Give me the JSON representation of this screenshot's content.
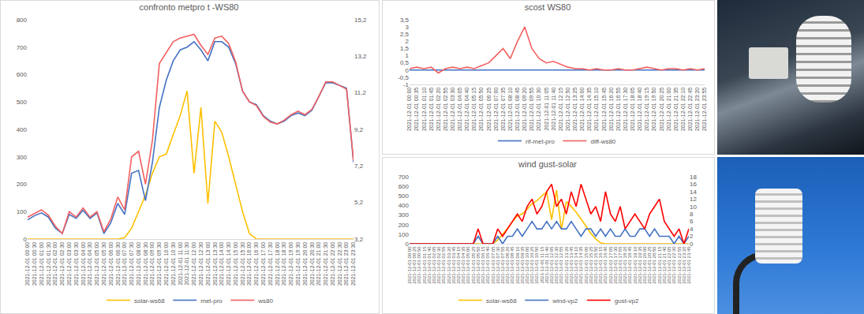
{
  "chart_data": [
    {
      "type": "line",
      "title": "confronto metpro t -WS80",
      "categories": [
        "2021-12-01 00:00",
        "2021-12-01 00:30",
        "2021-12-01 01:00",
        "2021-12-01 01:30",
        "2021-12-01 02:00",
        "2021-12-01 02:30",
        "2021-12-01 03:00",
        "2021-12-01 03:30",
        "2021-12-01 04:00",
        "2021-12-01 04:30",
        "2021-12-01 05:00",
        "2021-12-01 05:30",
        "2021-12-01 06:00",
        "2021-12-01 06:30",
        "2021-12-01 07:00",
        "2021-12-01 07:30",
        "2021-12-01 08:00",
        "2021-12-01 08:30",
        "2021-12-01 09:00",
        "2021-12-01 09:30",
        "2021-12-01 10:00",
        "2021-12-01 10:30",
        "2021-12-01 11:00",
        "2021-12-01 11:30",
        "2021-12-01 12:00",
        "2021-12-01 12:30",
        "2021-12-01 13:00",
        "2021-12-01 13:30",
        "2021-12-01 14:00",
        "2021-12-01 14:30",
        "2021-12-01 15:00",
        "2021-12-01 15:30",
        "2021-12-01 16:00",
        "2021-12-01 16:30",
        "2021-12-01 17:00",
        "2021-12-01 17:30",
        "2021-12-01 18:00",
        "2021-12-01 18:30",
        "2021-12-01 19:00",
        "2021-12-01 19:30",
        "2021-12-01 20:00",
        "2021-12-01 20:30",
        "2021-12-01 21:00",
        "2021-12-01 21:30",
        "2021-12-01 22:00",
        "2021-12-01 22:30",
        "2021-12-01 23:00",
        "2021-12-01 23:30"
      ],
      "series": [
        {
          "name": "solar-ws68",
          "color": "#ffc000",
          "values": [
            0,
            0,
            0,
            0,
            0,
            0,
            0,
            0,
            0,
            0,
            0,
            0,
            0,
            0,
            5,
            40,
            100,
            160,
            240,
            300,
            310,
            380,
            450,
            540,
            240,
            480,
            130,
            430,
            390,
            300,
            200,
            100,
            20,
            0,
            0,
            0,
            0,
            0,
            0,
            0,
            0,
            0,
            0,
            0,
            0,
            0,
            0,
            0
          ]
        },
        {
          "name": "met-pro",
          "color": "#4472c4",
          "axis": "y2",
          "values": [
            4.25,
            4.48,
            4.63,
            4.4,
            3.8,
            3.5,
            4.55,
            4.33,
            4.78,
            4.33,
            4.63,
            3.5,
            4.1,
            5.15,
            4.55,
            6.8,
            6.95,
            5.3,
            7.4,
            10.4,
            11.9,
            12.95,
            13.55,
            13.7,
            14.0,
            13.55,
            12.95,
            14.0,
            14.0,
            13.7,
            12.8,
            11.3,
            10.7,
            10.55,
            9.95,
            9.65,
            9.5,
            9.65,
            9.95,
            10.1,
            9.95,
            10.25,
            11.0,
            11.75,
            11.75,
            11.6,
            11.45,
            7.4
          ]
        },
        {
          "name": "ws80",
          "color": "#f46060",
          "axis": "y2",
          "values": [
            4.4,
            4.6,
            4.8,
            4.5,
            3.9,
            3.5,
            4.7,
            4.4,
            4.9,
            4.4,
            4.7,
            3.6,
            4.3,
            5.5,
            4.8,
            7.7,
            8.0,
            6.2,
            8.6,
            12.8,
            13.4,
            14.0,
            14.2,
            14.3,
            14.4,
            13.8,
            13.3,
            14.2,
            14.3,
            13.9,
            12.9,
            11.3,
            10.7,
            10.5,
            9.9,
            9.6,
            9.5,
            9.7,
            10.0,
            10.2,
            10.0,
            10.3,
            11.0,
            11.8,
            11.8,
            11.6,
            11.4,
            7.5
          ]
        }
      ],
      "ylim": [
        0,
        800
      ],
      "yticks": [
        0,
        100,
        200,
        300,
        400,
        500,
        600,
        700,
        800
      ],
      "y2lim": [
        3.2,
        15.2
      ],
      "y2ticks": [
        {
          "value": 3.2,
          "label": "3,2"
        },
        {
          "value": 5.2,
          "label": "5,2"
        },
        {
          "value": 7.2,
          "label": "7,2"
        },
        {
          "value": 9.2,
          "label": "9,2"
        },
        {
          "value": 11.2,
          "label": "11,2"
        },
        {
          "value": 13.2,
          "label": "13,2"
        },
        {
          "value": 15.2,
          "label": "15,2"
        }
      ],
      "grid": false,
      "legend": "bottom"
    },
    {
      "type": "line",
      "title": "scost WS80",
      "categories": [
        "2021-12-01 00:00",
        "2021-12-01 00:35",
        "2021-12-01 01:10",
        "2021-12-01 01:45",
        "2021-12-01 02:20",
        "2021-12-01 02:55",
        "2021-12-01 03:30",
        "2021-12-01 04:05",
        "2021-12-01 04:40",
        "2021-12-01 05:15",
        "2021-12-01 05:50",
        "2021-12-01 06:25",
        "2021-12-01 07:00",
        "2021-12-01 07:35",
        "2021-12-01 08:10",
        "2021-12-01 08:45",
        "2021-12-01 09:20",
        "2021-12-01 09:55",
        "2021-12-01 10:30",
        "2021-12-01 11:05",
        "2021-12-01 11:40",
        "2021-12-01 12:15",
        "2021-12-01 12:50",
        "2021-12-01 13:25",
        "2021-12-01 14:00",
        "2021-12-01 14:35",
        "2021-12-01 15:10",
        "2021-12-01 15:45",
        "2021-12-01 16:20",
        "2021-12-01 16:55",
        "2021-12-01 17:30",
        "2021-12-01 18:05",
        "2021-12-01 18:40",
        "2021-12-01 19:15",
        "2021-12-01 19:50",
        "2021-12-01 20:25",
        "2021-12-01 21:00",
        "2021-12-01 21:35",
        "2021-12-01 22:10",
        "2021-12-01 22:45",
        "2021-12-01 23:20",
        "2021-12-01 23:55"
      ],
      "series": [
        {
          "name": "rif-met-pro",
          "color": "#4472c4",
          "values": [
            0,
            0,
            0,
            0,
            0,
            0,
            0,
            0,
            0,
            0,
            0,
            0,
            0,
            0,
            0,
            0,
            0,
            0,
            0,
            0,
            0,
            0,
            0,
            0,
            0,
            0,
            0,
            0,
            0,
            0,
            0,
            0,
            0,
            0,
            0,
            0,
            0,
            0,
            0,
            0,
            0,
            0
          ]
        },
        {
          "name": "diff-ws80",
          "color": "#f46060",
          "values": [
            0.1,
            0.2,
            0.1,
            0.2,
            -0.2,
            0.1,
            0.2,
            0.1,
            0.2,
            0.1,
            0.3,
            0.5,
            1.0,
            1.5,
            0.8,
            2.0,
            3.0,
            1.5,
            0.8,
            0.5,
            0.6,
            0.4,
            0.2,
            0.1,
            0.1,
            0.0,
            0.1,
            0.0,
            0.0,
            0.1,
            0.0,
            0.0,
            0.1,
            0.2,
            0.1,
            0.0,
            0.1,
            0.1,
            0.0,
            0.1,
            0.0,
            0.1
          ]
        }
      ],
      "ylim": [
        -1,
        3.5
      ],
      "yticks": [
        {
          "value": -1,
          "label": "-1"
        },
        {
          "value": -0.5,
          "label": "-0,5"
        },
        0,
        {
          "value": 0.5,
          "label": "0,5"
        },
        1,
        {
          "value": 1.5,
          "label": "1,5"
        },
        2,
        {
          "value": 2.5,
          "label": "2,5"
        },
        3,
        {
          "value": 3.5,
          "label": "3,5"
        }
      ],
      "grid": false,
      "legend": "bottom"
    },
    {
      "type": "line",
      "title": "wind gust-solar",
      "categories": [
        "2021-12-01 00:00",
        "2021-12-01 00:25",
        "2021-12-01 00:50",
        "2021-12-01 01:15",
        "2021-12-01 01:40",
        "2021-12-01 02:05",
        "2021-12-01 02:30",
        "2021-12-01 02:55",
        "2021-12-01 03:20",
        "2021-12-01 03:45",
        "2021-12-01 04:10",
        "2021-12-01 04:35",
        "2021-12-01 05:00",
        "2021-12-01 05:25",
        "2021-12-01 05:50",
        "2021-12-01 06:15",
        "2021-12-01 06:40",
        "2021-12-01 07:05",
        "2021-12-01 07:30",
        "2021-12-01 07:55",
        "2021-12-01 08:20",
        "2021-12-01 08:45",
        "2021-12-01 09:10",
        "2021-12-01 09:35",
        "2021-12-01 10:00",
        "2021-12-01 10:25",
        "2021-12-01 10:50",
        "2021-12-01 11:15",
        "2021-12-01 11:40",
        "2021-12-01 12:05",
        "2021-12-01 12:30",
        "2021-12-01 12:55",
        "2021-12-01 13:20",
        "2021-12-01 13:45",
        "2021-12-01 14:10",
        "2021-12-01 14:35",
        "2021-12-01 15:00",
        "2021-12-01 15:25",
        "2021-12-01 15:50",
        "2021-12-01 16:15",
        "2021-12-01 16:40",
        "2021-12-01 17:05",
        "2021-12-01 17:30",
        "2021-12-01 17:55",
        "2021-12-01 18:20",
        "2021-12-01 18:45",
        "2021-12-01 19:10",
        "2021-12-01 19:35",
        "2021-12-01 20:00",
        "2021-12-01 20:25",
        "2021-12-01 20:50",
        "2021-12-01 21:15",
        "2021-12-01 21:40",
        "2021-12-01 22:05",
        "2021-12-01 22:30",
        "2021-12-01 22:55",
        "2021-12-01 23:20",
        "2021-12-01 23:45"
      ],
      "series": [
        {
          "name": "solar-ws68",
          "color": "#ffc000",
          "values": [
            0,
            0,
            0,
            0,
            0,
            0,
            0,
            0,
            0,
            0,
            0,
            0,
            0,
            0,
            0,
            0,
            0,
            0,
            40,
            100,
            160,
            230,
            290,
            310,
            360,
            420,
            450,
            500,
            540,
            250,
            560,
            150,
            440,
            390,
            330,
            260,
            180,
            110,
            50,
            10,
            0,
            0,
            0,
            0,
            0,
            0,
            0,
            0,
            0,
            0,
            0,
            0,
            0,
            0,
            0,
            0,
            0,
            0
          ]
        },
        {
          "name": "wind-vp2",
          "color": "#4472c4",
          "axis": "y2",
          "values": [
            0,
            0,
            0,
            0,
            0,
            0,
            0,
            0,
            0,
            0,
            0,
            0,
            0,
            0,
            2,
            0,
            0,
            0,
            2,
            0,
            2,
            2,
            4,
            2,
            4,
            6,
            4,
            4,
            6,
            4,
            6,
            4,
            4,
            6,
            4,
            2,
            4,
            4,
            2,
            4,
            2,
            4,
            2,
            2,
            4,
            2,
            2,
            4,
            4,
            2,
            4,
            2,
            2,
            2,
            0,
            2,
            0,
            2
          ]
        },
        {
          "name": "gust-vp2",
          "color": "#ff0000",
          "axis": "y2",
          "values": [
            0,
            0,
            0,
            0,
            0,
            0,
            0,
            0,
            0,
            0,
            0,
            0,
            0,
            0,
            4,
            0,
            0,
            0,
            4,
            2,
            4,
            6,
            8,
            6,
            10,
            12,
            8,
            10,
            14,
            16,
            10,
            12,
            8,
            14,
            10,
            16,
            12,
            8,
            10,
            6,
            14,
            8,
            6,
            10,
            4,
            6,
            8,
            6,
            4,
            8,
            10,
            12,
            6,
            4,
            2,
            4,
            0,
            4
          ]
        }
      ],
      "ylim": [
        0,
        700
      ],
      "yticks": [
        0,
        100,
        200,
        300,
        400,
        500,
        600,
        700
      ],
      "y2lim": [
        0,
        18
      ],
      "y2ticks": [
        0,
        2,
        4,
        6,
        8,
        10,
        12,
        14,
        16,
        18
      ],
      "grid": false,
      "legend": "bottom"
    }
  ]
}
